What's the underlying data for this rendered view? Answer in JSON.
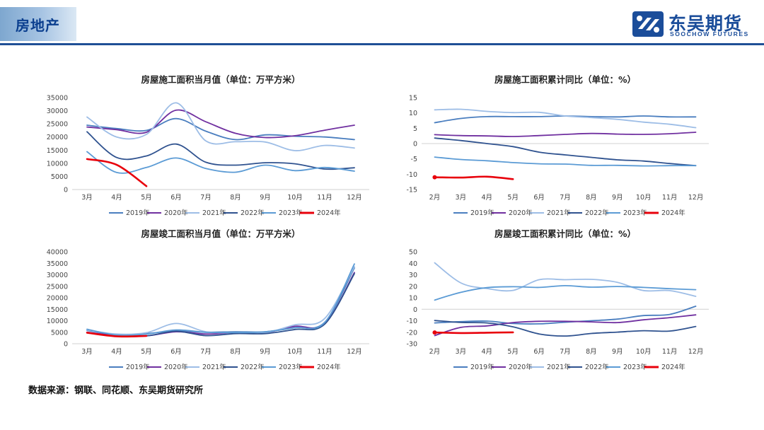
{
  "header": {
    "section_title": "房地产",
    "logo_cn": "东吴期货",
    "logo_en": "SOOCHOW FUTURES"
  },
  "footer": {
    "source": "数据来源：钢联、同花顺、东吴期货研究所"
  },
  "colors": {
    "header_line": "#1f4f96",
    "series": [
      "#4a7ebf",
      "#7030a0",
      "#9dbde6",
      "#2f528f",
      "#5b9bd5",
      "#e8000b"
    ]
  },
  "chart_data": [
    {
      "type": "line",
      "title": "房屋施工面积当月值（单位：万平方米）",
      "x": [
        "3月",
        "4月",
        "5月",
        "6月",
        "7月",
        "8月",
        "9月",
        "10月",
        "11月",
        "12月"
      ],
      "ylim": [
        0,
        35000
      ],
      "yticks": [
        0,
        5000,
        10000,
        15000,
        20000,
        25000,
        30000,
        35000
      ],
      "legend": "bottom",
      "series": [
        {
          "name": "2019年",
          "values": [
            24500,
            23200,
            22500,
            27000,
            22200,
            19000,
            20800,
            20300,
            20000,
            19000
          ]
        },
        {
          "name": "2020年",
          "values": [
            23800,
            22800,
            21800,
            30200,
            25800,
            21400,
            19800,
            20500,
            22600,
            24500
          ]
        },
        {
          "name": "2021年",
          "values": [
            27600,
            20000,
            21000,
            33000,
            18500,
            18200,
            18100,
            14800,
            16800,
            15800
          ]
        },
        {
          "name": "2022年",
          "values": [
            22000,
            12200,
            12800,
            17300,
            10400,
            9300,
            10200,
            9800,
            7800,
            8300
          ]
        },
        {
          "name": "2023年",
          "values": [
            14400,
            6500,
            8400,
            12000,
            8000,
            6600,
            9300,
            7200,
            8400,
            7000
          ]
        },
        {
          "name": "2024年",
          "values": [
            11600,
            9400,
            1300,
            null,
            null,
            null,
            null,
            null,
            null,
            null
          ]
        }
      ]
    },
    {
      "type": "line",
      "title": "房屋施工面积累计同比（单位：%）",
      "x": [
        "2月",
        "3月",
        "4月",
        "5月",
        "6月",
        "7月",
        "8月",
        "9月",
        "10月",
        "11月",
        "12月"
      ],
      "ylim": [
        -15,
        15
      ],
      "yticks": [
        -15,
        -10,
        -5,
        0,
        5,
        10,
        15
      ],
      "legend": "bottom",
      "series": [
        {
          "name": "2019年",
          "values": [
            6.8,
            8.2,
            8.8,
            8.8,
            8.8,
            9.0,
            8.8,
            8.7,
            9.0,
            8.7,
            8.7
          ]
        },
        {
          "name": "2020年",
          "values": [
            2.9,
            2.6,
            2.5,
            2.3,
            2.6,
            3.0,
            3.3,
            3.1,
            3.0,
            3.2,
            3.7
          ]
        },
        {
          "name": "2021年",
          "values": [
            11.0,
            11.2,
            10.5,
            10.1,
            10.2,
            9.0,
            8.5,
            7.9,
            7.0,
            6.3,
            5.2
          ]
        },
        {
          "name": "2022年",
          "values": [
            1.8,
            1.0,
            0.0,
            -1.0,
            -2.8,
            -3.7,
            -4.5,
            -5.3,
            -5.7,
            -6.5,
            -7.2
          ]
        },
        {
          "name": "2023年",
          "values": [
            -4.4,
            -5.2,
            -5.6,
            -6.2,
            -6.6,
            -6.7,
            -7.1,
            -7.1,
            -7.3,
            -7.2,
            -7.2
          ]
        },
        {
          "name": "2024年",
          "values": [
            -11.0,
            -11.1,
            -10.8,
            -11.6,
            null,
            null,
            null,
            null,
            null,
            null,
            null
          ]
        }
      ]
    },
    {
      "type": "line",
      "title": "房屋竣工面积当月值（单位：万平方米）",
      "x": [
        "3月",
        "4月",
        "5月",
        "6月",
        "7月",
        "8月",
        "9月",
        "10月",
        "11月",
        "12月"
      ],
      "ylim": [
        0,
        40000
      ],
      "yticks": [
        0,
        5000,
        10000,
        15000,
        20000,
        25000,
        30000,
        35000,
        40000
      ],
      "legend": "bottom",
      "series": [
        {
          "name": "2019年",
          "values": [
            5800,
            4000,
            4400,
            5600,
            5000,
            5200,
            5200,
            7000,
            9300,
            33000
          ]
        },
        {
          "name": "2020年",
          "values": [
            5000,
            3600,
            3400,
            5200,
            4200,
            4800,
            4800,
            7600,
            8600,
            31000
          ]
        },
        {
          "name": "2021年",
          "values": [
            6000,
            4200,
            4800,
            8800,
            5200,
            4800,
            4800,
            8200,
            11000,
            33500
          ]
        },
        {
          "name": "2022年",
          "values": [
            4800,
            3200,
            3400,
            5400,
            3500,
            4400,
            4400,
            6200,
            8500,
            30500
          ]
        },
        {
          "name": "2023年",
          "values": [
            6300,
            3800,
            4200,
            6000,
            5000,
            4900,
            5200,
            7000,
            9200,
            34700
          ]
        },
        {
          "name": "2024年",
          "values": [
            4800,
            3200,
            3400,
            null,
            null,
            null,
            null,
            null,
            null,
            null
          ]
        }
      ]
    },
    {
      "type": "line",
      "title": "房屋竣工面积累计同比（单位：%）",
      "x": [
        "2月",
        "3月",
        "4月",
        "5月",
        "6月",
        "7月",
        "8月",
        "9月",
        "10月",
        "11月",
        "12月"
      ],
      "ylim": [
        -30,
        50
      ],
      "yticks": [
        -30,
        -20,
        -10,
        0,
        10,
        20,
        30,
        40,
        50
      ],
      "legend": "bottom",
      "series": [
        {
          "name": "2019年",
          "values": [
            -11.9,
            -10.8,
            -10.3,
            -12.4,
            -12.7,
            -11.3,
            -10.0,
            -8.6,
            -5.5,
            -4.5,
            2.6
          ]
        },
        {
          "name": "2020年",
          "values": [
            -22.9,
            -15.8,
            -14.5,
            -11.6,
            -10.5,
            -10.5,
            -11.0,
            -11.6,
            -9.2,
            -7.3,
            -4.9
          ]
        },
        {
          "name": "2021年",
          "values": [
            40.4,
            22.9,
            18.0,
            16.4,
            25.7,
            25.7,
            26.0,
            23.4,
            16.3,
            16.2,
            11.2
          ]
        },
        {
          "name": "2022年",
          "values": [
            -9.8,
            -11.5,
            -11.9,
            -15.3,
            -21.5,
            -23.3,
            -21.1,
            -19.9,
            -18.7,
            -19.0,
            -15.0
          ]
        },
        {
          "name": "2023年",
          "values": [
            8.0,
            14.7,
            18.8,
            19.6,
            19.0,
            20.5,
            19.2,
            19.8,
            19.0,
            17.9,
            17.0
          ]
        },
        {
          "name": "2024年",
          "values": [
            -20.2,
            -20.7,
            -20.4,
            -20.1,
            null,
            null,
            null,
            null,
            null,
            null,
            null
          ]
        }
      ]
    }
  ]
}
